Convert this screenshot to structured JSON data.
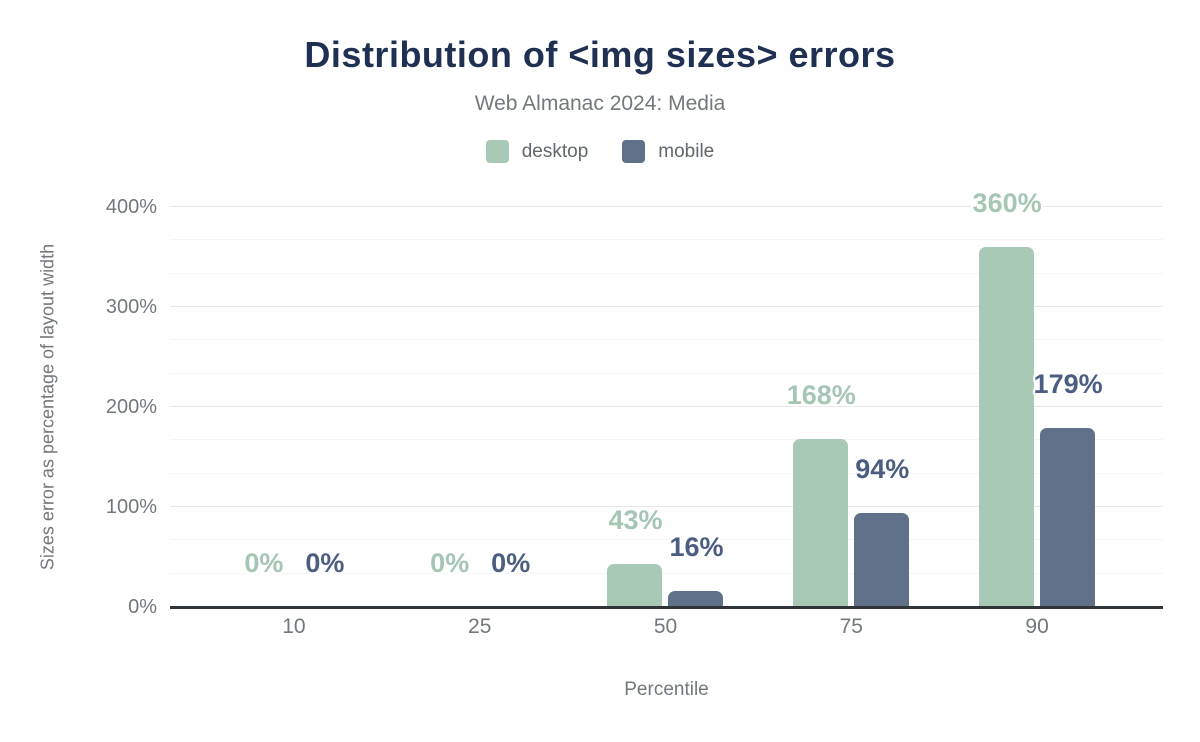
{
  "chart_data": {
    "type": "bar",
    "title": "Distribution of <img sizes> errors",
    "subtitle": "Web Almanac 2024: Media",
    "categories": [
      "10",
      "25",
      "50",
      "75",
      "90"
    ],
    "series": [
      {
        "name": "desktop",
        "color": "#a8c9b6",
        "label_color": "#a4c6b3",
        "values": [
          0,
          0,
          43,
          168,
          360
        ],
        "labels": [
          "0%",
          "0%",
          "43%",
          "168%",
          "360%"
        ]
      },
      {
        "name": "mobile",
        "color": "#5f7189",
        "label_color": "#4b5e82",
        "values": [
          0,
          0,
          16,
          94,
          179
        ],
        "labels": [
          "0%",
          "0%",
          "16%",
          "94%",
          "179%"
        ]
      }
    ],
    "xlabel": "Percentile",
    "ylabel": "Sizes error as percentage of layout width",
    "ylim": [
      0,
      400
    ],
    "y_ticks": [
      {
        "value": 0,
        "label": "0%"
      },
      {
        "value": 100,
        "label": "100%"
      },
      {
        "value": 200,
        "label": "200%"
      },
      {
        "value": 300,
        "label": "300%"
      },
      {
        "value": 400,
        "label": "400%"
      }
    ],
    "minor_gridlines_per_major": 2,
    "grid": "horizontal",
    "legend_position": "top",
    "axis_color": "#30353a",
    "title_color": "#1f3052",
    "text_color": "#72787d"
  }
}
